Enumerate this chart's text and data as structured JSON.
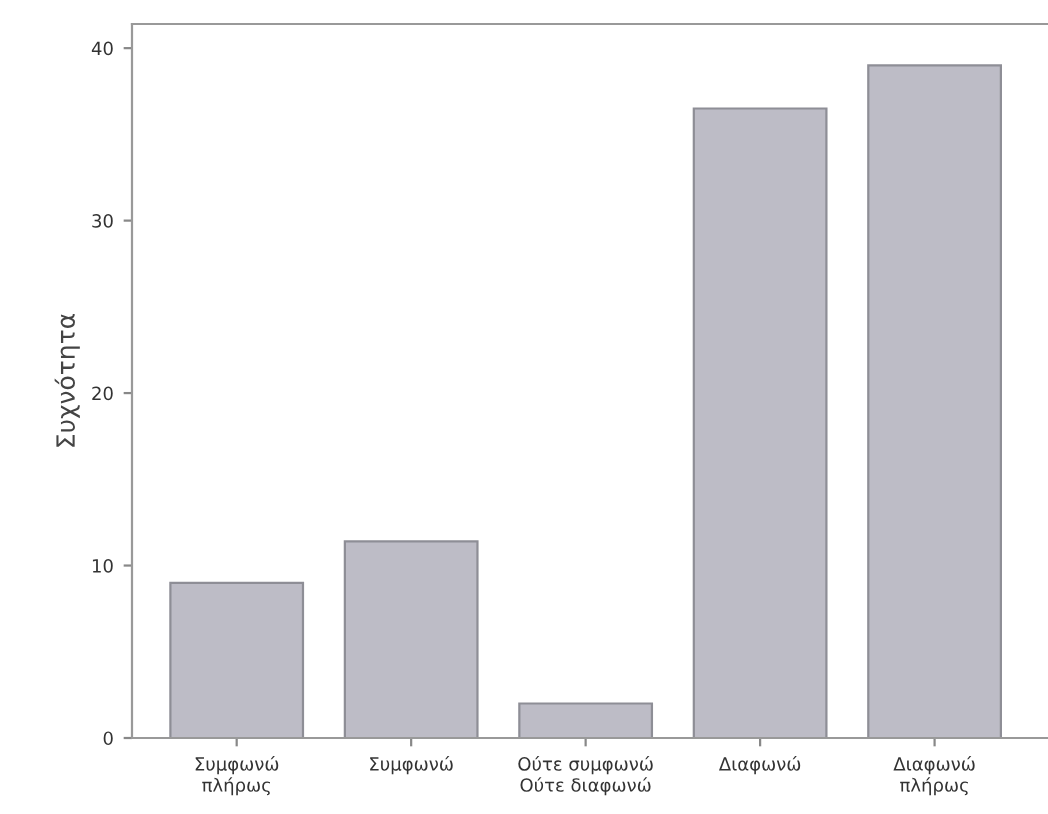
{
  "chart_data": {
    "type": "bar",
    "ylabel": "Συχνότητα",
    "categories": [
      "Συμφωνώ\nπλήρως",
      "Συμφωνώ",
      "Ούτε συμφωνώ\nΟύτε διαφωνώ",
      "Διαφωνώ",
      "Διαφωνώ\nπλήρως"
    ],
    "values": [
      9,
      11.4,
      2,
      36.5,
      39
    ],
    "color": "#bdbcc6",
    "ylim": [
      0,
      41.4
    ],
    "yticks": [
      0,
      10,
      20,
      30,
      40
    ],
    "grid": false,
    "legend": false
  }
}
